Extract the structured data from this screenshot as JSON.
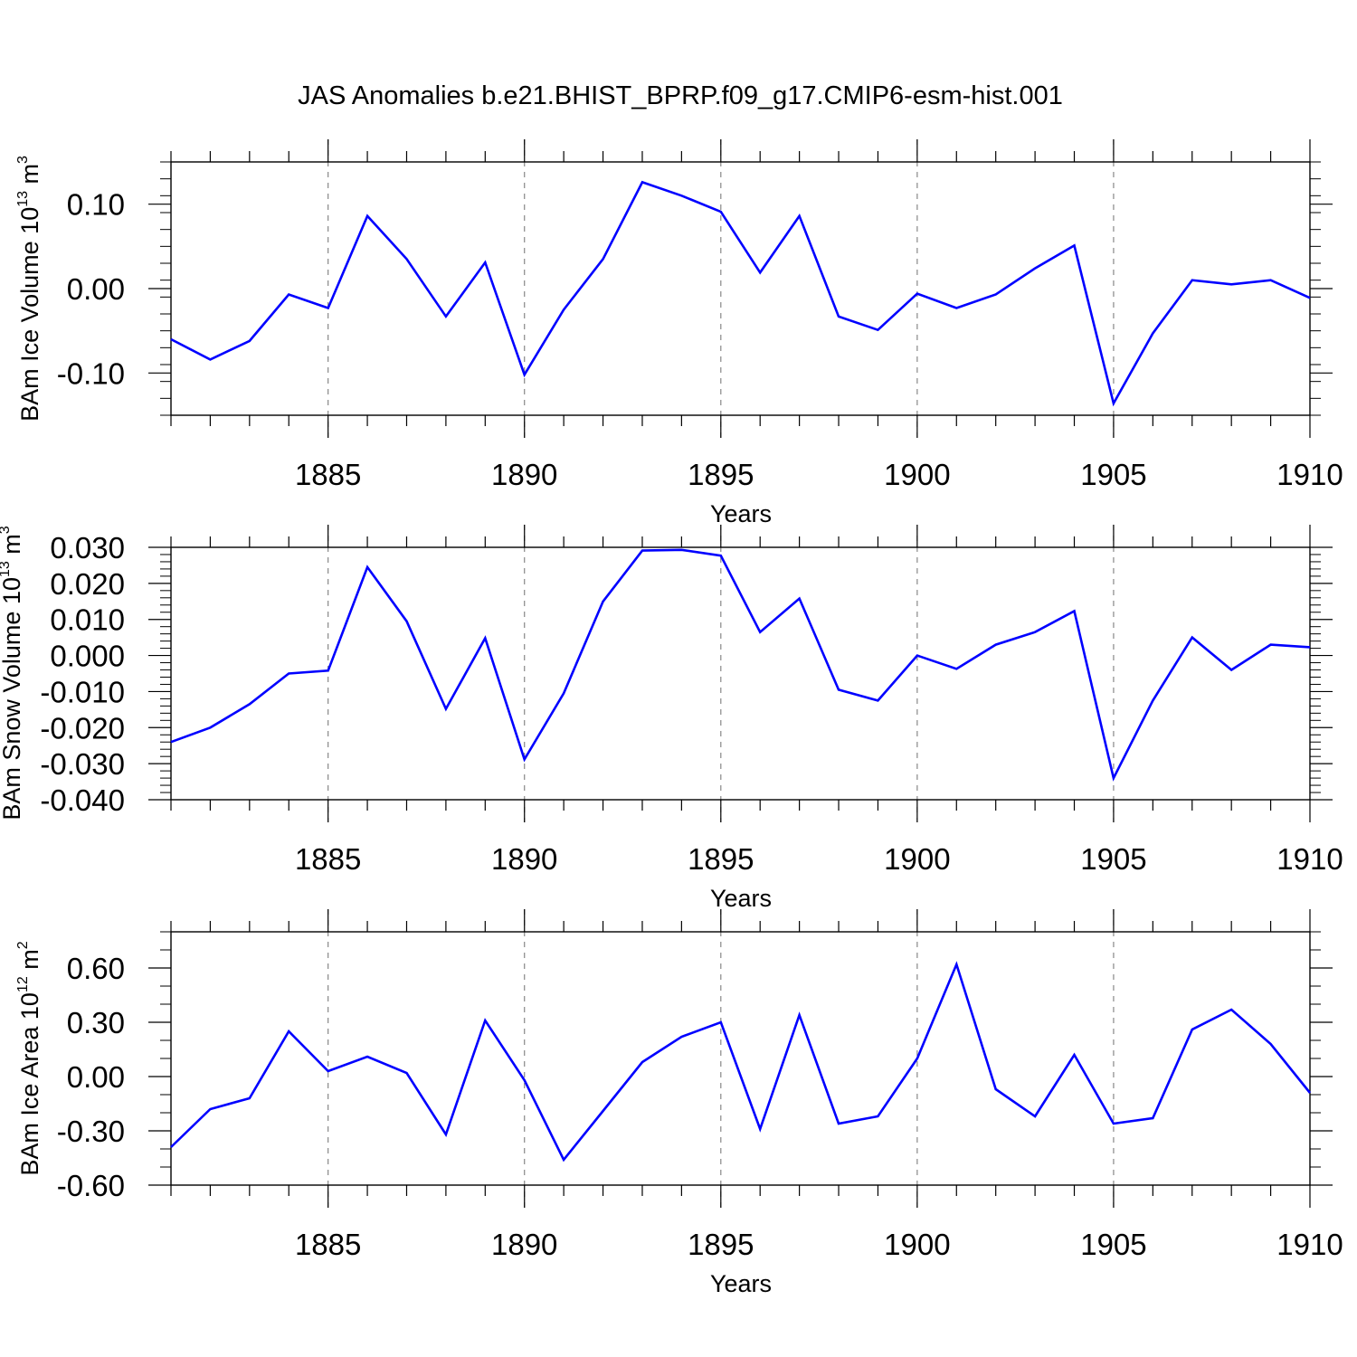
{
  "title": "JAS Anomalies b.e21.BHIST_BPRP.f09_g17.CMIP6-esm-hist.001",
  "colors": {
    "line": "#0000ff",
    "axis": "#000000",
    "grid": "#888888"
  },
  "chart_data": [
    {
      "type": "line",
      "title": "JAS Anomalies b.e21.BHIST_BPRP.f09_g17.CMIP6-esm-hist.001",
      "xlabel": "Years",
      "ylabel": {
        "main": "BAm Ice Volume 10",
        "sup_exp": "13",
        "unit": " m",
        "sup_unit": "3"
      },
      "xlim": [
        1881,
        1910
      ],
      "ylim": [
        -0.15,
        0.15
      ],
      "yticks": [
        -0.1,
        0.0,
        0.1
      ],
      "ytick_labels": [
        "-0.10",
        "0.00",
        "0.10"
      ],
      "yminor_step": 0.02,
      "xticks": [
        1885,
        1890,
        1895,
        1900,
        1905,
        1910
      ],
      "xtick_labels": [
        "1885",
        "1890",
        "1895",
        "1900",
        "1905",
        "1910"
      ],
      "x": [
        1881,
        1882,
        1883,
        1884,
        1885,
        1886,
        1887,
        1888,
        1889,
        1890,
        1891,
        1892,
        1893,
        1894,
        1895,
        1896,
        1897,
        1898,
        1899,
        1900,
        1901,
        1902,
        1903,
        1904,
        1905,
        1906,
        1907,
        1908,
        1909,
        1910
      ],
      "series": [
        {
          "name": "Ice Volume",
          "values": [
            -0.06,
            -0.084,
            -0.062,
            -0.007,
            -0.023,
            0.086,
            0.035,
            -0.033,
            0.031,
            -0.102,
            -0.025,
            0.035,
            0.126,
            0.11,
            0.091,
            0.019,
            0.086,
            -0.033,
            -0.049,
            -0.006,
            -0.023,
            -0.007,
            0.024,
            0.051,
            -0.136,
            -0.053,
            0.01,
            0.005,
            0.01,
            -0.011
          ]
        }
      ]
    },
    {
      "type": "line",
      "xlabel": "Years",
      "ylabel": {
        "main": "BAm Snow Volume 10",
        "sup_exp": "13",
        "unit": " m",
        "sup_unit": "3"
      },
      "xlim": [
        1881,
        1910
      ],
      "ylim": [
        -0.04,
        0.03
      ],
      "yticks": [
        -0.04,
        -0.03,
        -0.02,
        -0.01,
        0.0,
        0.01,
        0.02,
        0.03
      ],
      "ytick_labels": [
        "-0.040",
        "-0.030",
        "-0.020",
        "-0.010",
        "0.000",
        "0.010",
        "0.020",
        "0.030"
      ],
      "yminor_step": 0.002,
      "xticks": [
        1885,
        1890,
        1895,
        1900,
        1905,
        1910
      ],
      "xtick_labels": [
        "1885",
        "1890",
        "1895",
        "1900",
        "1905",
        "1910"
      ],
      "x": [
        1881,
        1882,
        1883,
        1884,
        1885,
        1886,
        1887,
        1888,
        1889,
        1890,
        1891,
        1892,
        1893,
        1894,
        1895,
        1896,
        1897,
        1898,
        1899,
        1900,
        1901,
        1902,
        1903,
        1904,
        1905,
        1906,
        1907,
        1908,
        1909,
        1910
      ],
      "series": [
        {
          "name": "Snow Volume",
          "values": [
            -0.024,
            -0.02,
            -0.0135,
            -0.005,
            -0.0042,
            0.0245,
            0.0095,
            -0.0148,
            0.0048,
            -0.0288,
            -0.0105,
            0.015,
            0.0291,
            0.0293,
            0.0277,
            0.0065,
            0.0158,
            -0.0095,
            -0.0125,
            0.0,
            -0.0037,
            0.003,
            0.0065,
            0.0123,
            -0.034,
            -0.0125,
            0.005,
            -0.004,
            0.003,
            0.0023
          ]
        }
      ]
    },
    {
      "type": "line",
      "xlabel": "Years",
      "ylabel": {
        "main": "BAm Ice Area 10",
        "sup_exp": "12",
        "unit": " m",
        "sup_unit": "2"
      },
      "xlim": [
        1881,
        1910
      ],
      "ylim": [
        -0.6,
        0.8
      ],
      "yticks": [
        -0.6,
        -0.3,
        0.0,
        0.3,
        0.6
      ],
      "ytick_labels": [
        "-0.60",
        "-0.30",
        "0.00",
        "0.30",
        "0.60"
      ],
      "yminor_step": 0.1,
      "xticks": [
        1885,
        1890,
        1895,
        1900,
        1905,
        1910
      ],
      "xtick_labels": [
        "1885",
        "1890",
        "1895",
        "1900",
        "1905",
        "1910"
      ],
      "x": [
        1881,
        1882,
        1883,
        1884,
        1885,
        1886,
        1887,
        1888,
        1889,
        1890,
        1891,
        1892,
        1893,
        1894,
        1895,
        1896,
        1897,
        1898,
        1899,
        1900,
        1901,
        1902,
        1903,
        1904,
        1905,
        1906,
        1907,
        1908,
        1909,
        1910
      ],
      "series": [
        {
          "name": "Ice Area",
          "values": [
            -0.39,
            -0.18,
            -0.12,
            0.25,
            0.03,
            0.11,
            0.02,
            -0.32,
            0.31,
            -0.02,
            -0.46,
            -0.19,
            0.08,
            0.22,
            0.3,
            -0.29,
            0.34,
            -0.26,
            -0.22,
            0.1,
            0.62,
            -0.07,
            -0.22,
            0.12,
            -0.26,
            -0.23,
            0.26,
            0.37,
            0.18,
            -0.09
          ]
        }
      ]
    }
  ]
}
